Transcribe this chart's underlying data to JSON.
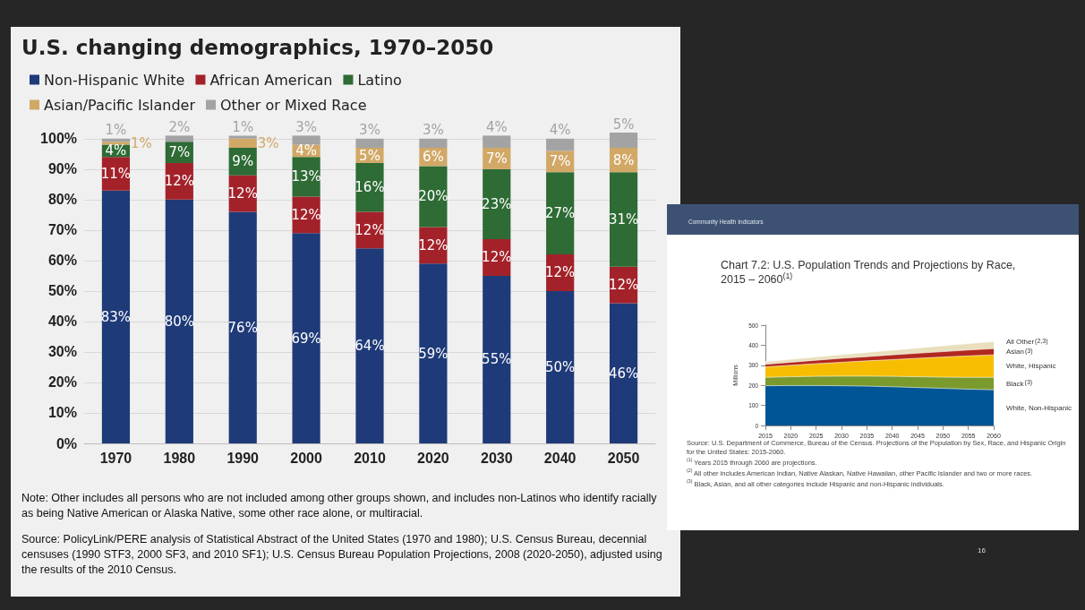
{
  "chart_data": [
    {
      "type": "bar",
      "stacked": true,
      "title": "U.S. changing demographics, 1970–2050",
      "categories": [
        "1970",
        "1980",
        "1990",
        "2000",
        "2010",
        "2020",
        "2030",
        "2040",
        "2050"
      ],
      "series": [
        {
          "name": "Non-Hispanic White",
          "color": "#1f3a78",
          "values": [
            83,
            80,
            76,
            69,
            64,
            59,
            55,
            50,
            46
          ],
          "value_labels": [
            "83%",
            "80%",
            "76%",
            "69%",
            "64%",
            "59%",
            "55%",
            "50%",
            "46%"
          ]
        },
        {
          "name": "African American",
          "color": "#a3222a",
          "values": [
            11,
            12,
            12,
            12,
            12,
            12,
            12,
            12,
            12
          ],
          "value_labels": [
            "11%",
            "12%",
            "12%",
            "12%",
            "12%",
            "12%",
            "12%",
            "12%",
            "12%"
          ]
        },
        {
          "name": "Latino",
          "color": "#2e6b35",
          "values": [
            4,
            7,
            9,
            13,
            16,
            20,
            23,
            27,
            31
          ],
          "value_labels": [
            "4%",
            "7%",
            "9%",
            "13%",
            "16%",
            "20%",
            "23%",
            "27%",
            "31%"
          ]
        },
        {
          "name": "Asian/Pacific Islander",
          "color": "#d2a867",
          "values": [
            1,
            null,
            3,
            4,
            5,
            6,
            7,
            7,
            8
          ],
          "value_labels": [
            "1%",
            null,
            "3%",
            "4%",
            "5%",
            "6%",
            "7%",
            "7%",
            "8%"
          ]
        },
        {
          "name": "Other or Mixed Race",
          "color": "#a3a3a3",
          "values": [
            1,
            2,
            1,
            3,
            3,
            3,
            4,
            4,
            5
          ],
          "value_labels": [
            "1%",
            "2%",
            "1%",
            "3%",
            "3%",
            "3%",
            "4%",
            "4%",
            "5%"
          ]
        }
      ],
      "ylim": [
        0,
        102
      ],
      "yticks": [
        {
          "value": 0,
          "label": "0%"
        },
        {
          "value": 10,
          "label": "10%"
        },
        {
          "value": 20,
          "label": "20%"
        },
        {
          "value": 30,
          "label": "30%"
        },
        {
          "value": 40,
          "label": "40%"
        },
        {
          "value": 50,
          "label": "50%"
        },
        {
          "value": 60,
          "label": "60%"
        },
        {
          "value": 70,
          "label": "70%"
        },
        {
          "value": 80,
          "label": "80%"
        },
        {
          "value": 90,
          "label": "90%"
        },
        {
          "value": 100,
          "label": "100%"
        }
      ],
      "grid": "y",
      "legend": "top left",
      "annotations": [
        "Note: Other includes all persons who are not included among other groups shown, and includes non-Latinos who identify racially as being Native American or Alaska Native, some other race alone, or multiracial.",
        "Source: PolicyLink/PERE analysis of Statistical Abstract of the United States (1970 and 1980); U.S. Census Bureau, decennial censuses (1990 STF3, 2000 SF3, and 2010 SF1); U.S. Census Bureau Population Projections, 2008 (2020-2050), adjusted using the results of the 2010 Census."
      ]
    },
    {
      "type": "area",
      "stacked": true,
      "subtitle": "Community Health Indicators",
      "title": "Chart 7.2: U.S. Population Trends and Projections by Race, 2015 – 2060$^{(1)}$",
      "ylabel": "Millions",
      "x": [
        2015,
        2020,
        2025,
        2030,
        2035,
        2040,
        2045,
        2050,
        2055,
        2060
      ],
      "series": [
        {
          "name": "White, Non-Hispanic",
          "color": "#005596",
          "values": [
            198,
            199,
            199,
            198,
            196,
            193,
            189,
            185,
            181,
            178
          ]
        },
        {
          "name": "Black$^{(3)}$",
          "color": "#7a9a2e",
          "values": [
            42,
            44,
            46,
            48,
            50,
            52,
            54,
            56,
            59,
            62
          ]
        },
        {
          "name": "White, Hispanic",
          "color": "#f7bd00",
          "values": [
            52,
            57,
            63,
            69,
            76,
            83,
            92,
            100,
            107,
            112
          ]
        },
        {
          "name": "Asian$^{(3)}$",
          "color": "#b0281f",
          "values": [
            13,
            15,
            17,
            20,
            21,
            24,
            25,
            27,
            29,
            31
          ]
        },
        {
          "name": "All Other$^{(2,3)}$",
          "color": "#e9dfbd",
          "values": [
            13,
            15,
            17,
            18,
            21,
            23,
            26,
            29,
            32,
            35
          ]
        }
      ],
      "xlim": [
        2015,
        2060
      ],
      "xticks": [
        2015,
        2020,
        2025,
        2030,
        2035,
        2040,
        2045,
        2050,
        2055,
        2060
      ],
      "ylim": [
        0,
        500
      ],
      "yticks": [
        0,
        100,
        200,
        300,
        400,
        500
      ],
      "grid": false,
      "legend": false,
      "annotations": [
        "Source: U.S. Department of Commerce, Bureau of the Census. Projections of the Population by Sex, Race, and Hispanic Origin for the United States: 2015-2060.",
        "$^{(1)}$ Years 2015 through 2060 are projections.",
        "$^{(2)}$ All other includes American Indian, Native Alaskan, Native Hawaiian, other Pacific Islander and two or more races.",
        "$^{(3)}$ Black, Asian, and all other categories include Hispanic and non-Hispanic individuals.",
        "16"
      ]
    }
  ]
}
